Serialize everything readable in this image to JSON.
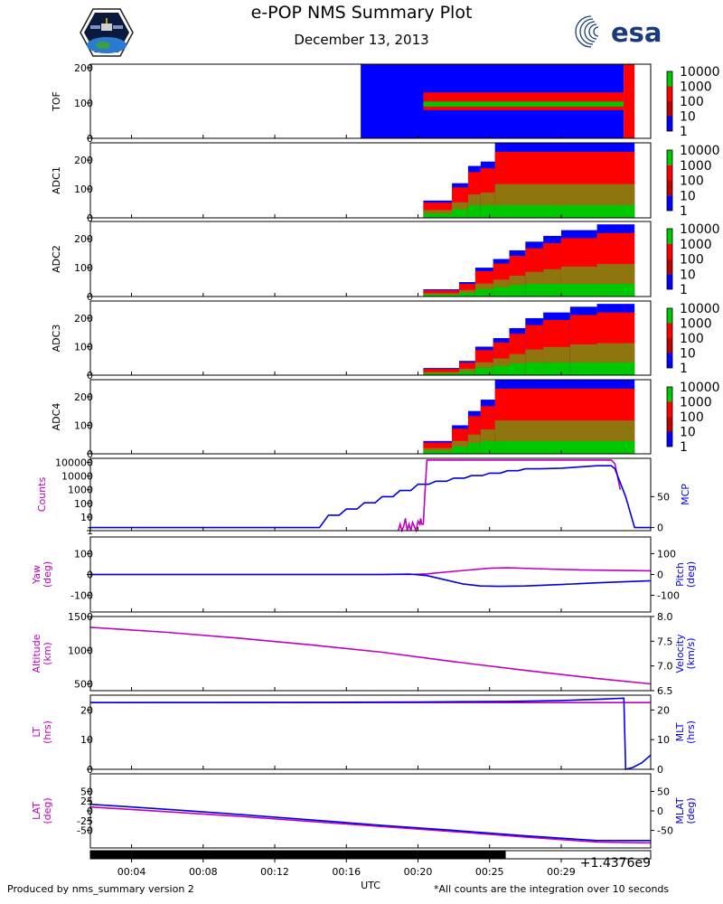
{
  "header": {
    "title": "e-POP NMS Summary Plot",
    "date": "December 13, 2013",
    "logo_left_name": "epop-mission-patch",
    "logo_right_text": "esa"
  },
  "footer": {
    "left": "Produced by nms_summary version 2",
    "right": "*All counts are the integration over 10 seconds"
  },
  "colors": {
    "magenta": "#c000c0",
    "blue": "#0000e0",
    "spec_blue": "#0000ff",
    "spec_red": "#ff0000",
    "spec_green": "#00c800"
  },
  "chart_data": [
    {
      "type": "heatmap",
      "name": "TOF",
      "ylabel": "TOF",
      "ylim": [
        0,
        210
      ],
      "yticks": [
        0,
        100,
        200
      ],
      "colorbar": {
        "ticks": [
          "10000",
          "1000",
          "100",
          "10",
          "1"
        ],
        "scale": "log"
      },
      "regions": [
        {
          "t0": 16.8,
          "t1": 31.5,
          "y0": 0,
          "y1": 210,
          "level": "low"
        },
        {
          "t0": 20.3,
          "t1": 31.5,
          "y0": 80,
          "y1": 130,
          "level": "mid"
        },
        {
          "t0": 20.3,
          "t1": 31.5,
          "y0": 90,
          "y1": 104,
          "level": "high"
        },
        {
          "t0": 31.5,
          "t1": 32.1,
          "y0": 0,
          "y1": 210,
          "level": "mid"
        }
      ]
    },
    {
      "type": "heatmap",
      "name": "ADC1",
      "ylabel": "ADC1",
      "ylim": [
        0,
        260
      ],
      "yticks": [
        0,
        100,
        200
      ],
      "colorbar": {
        "ticks": [
          "10000",
          "1000",
          "100",
          "10",
          "1"
        ],
        "scale": "log"
      },
      "steps": [
        [
          20.3,
          21.9,
          60
        ],
        [
          21.9,
          22.8,
          120
        ],
        [
          22.8,
          23.5,
          180
        ],
        [
          23.5,
          24.3,
          195
        ],
        [
          24.3,
          32.1,
          260
        ]
      ]
    },
    {
      "type": "heatmap",
      "name": "ADC2",
      "ylabel": "ADC2",
      "ylim": [
        0,
        260
      ],
      "yticks": [
        0,
        100,
        200
      ],
      "colorbar": {
        "ticks": [
          "10000",
          "1000",
          "100",
          "10",
          "1"
        ],
        "scale": "log"
      },
      "steps": [
        [
          20.3,
          22.3,
          25
        ],
        [
          22.3,
          23.2,
          50
        ],
        [
          23.2,
          24.2,
          100
        ],
        [
          24.2,
          25.1,
          130
        ],
        [
          25.1,
          26.0,
          160
        ],
        [
          26.0,
          27.0,
          190
        ],
        [
          27.0,
          28.0,
          210
        ],
        [
          28.0,
          30.0,
          230
        ],
        [
          30.0,
          32.1,
          250
        ]
      ]
    },
    {
      "type": "heatmap",
      "name": "ADC3",
      "ylabel": "ADC3",
      "ylim": [
        0,
        260
      ],
      "yticks": [
        0,
        100,
        200
      ],
      "colorbar": {
        "ticks": [
          "10000",
          "1000",
          "100",
          "10",
          "1"
        ],
        "scale": "log"
      },
      "steps": [
        [
          20.3,
          22.3,
          25
        ],
        [
          22.3,
          23.2,
          50
        ],
        [
          23.2,
          24.2,
          100
        ],
        [
          24.2,
          25.1,
          130
        ],
        [
          25.1,
          26.0,
          165
        ],
        [
          26.0,
          27.0,
          200
        ],
        [
          27.0,
          28.5,
          220
        ],
        [
          28.5,
          30.0,
          240
        ],
        [
          30.0,
          32.1,
          250
        ]
      ]
    },
    {
      "type": "heatmap",
      "name": "ADC4",
      "ylabel": "ADC4",
      "ylim": [
        0,
        260
      ],
      "yticks": [
        0,
        100,
        200
      ],
      "colorbar": {
        "ticks": [
          "10000",
          "1000",
          "100",
          "10",
          "1"
        ],
        "scale": "log"
      },
      "steps": [
        [
          20.3,
          21.9,
          45
        ],
        [
          21.9,
          22.8,
          100
        ],
        [
          22.8,
          23.5,
          150
        ],
        [
          23.5,
          24.3,
          190
        ],
        [
          24.3,
          32.1,
          260
        ]
      ]
    },
    {
      "type": "line",
      "name": "counts-mcp",
      "left_label": "Counts",
      "right_label": "MCP",
      "left_scale": "log",
      "left_ylim": [
        1,
        200000
      ],
      "left_ticks": [
        "1",
        "10",
        "100",
        "1000",
        "10000",
        "100000"
      ],
      "right_ylim": [
        -5,
        112
      ],
      "right_ticks": [
        "0",
        "50"
      ],
      "series": [
        {
          "name": "Counts",
          "color": "magenta",
          "axis": "left",
          "x": [
            18.9,
            19.0,
            19.1,
            19.2,
            19.3,
            19.4,
            19.5,
            19.6,
            19.7,
            19.8,
            19.9,
            20.0,
            20.1,
            20.15,
            20.2,
            20.3,
            20.4,
            20.5,
            20.6,
            30.6,
            30.8,
            31.0,
            31.3
          ],
          "y": [
            1,
            3,
            1,
            2,
            8,
            1,
            3,
            1,
            4,
            2,
            1,
            5,
            3,
            8,
            3,
            3,
            1000,
            150000,
            150000,
            150000,
            150000,
            80000,
            1000
          ]
        },
        {
          "name": "MCP",
          "color": "blue",
          "axis": "right",
          "x": [
            1.7,
            14.5,
            15.0,
            15.6,
            16.0,
            16.6,
            17.0,
            17.6,
            18.0,
            18.6,
            19.0,
            19.6,
            20.0,
            20.6,
            21.0,
            21.6,
            22.0,
            22.6,
            23.0,
            23.6,
            24.0,
            24.6,
            25.0,
            25.6,
            26.0,
            26.8,
            28.0,
            29.0,
            30.0,
            30.8,
            31.0,
            31.6,
            32.1,
            33.0
          ],
          "y": [
            0,
            0,
            20,
            20,
            30,
            30,
            40,
            40,
            50,
            50,
            60,
            60,
            70,
            70,
            75,
            75,
            80,
            80,
            84,
            84,
            88,
            88,
            92,
            92,
            95,
            95,
            96,
            98,
            100,
            100,
            95,
            50,
            0,
            0
          ]
        }
      ]
    },
    {
      "type": "line",
      "name": "yaw-pitch",
      "left_label": "Yaw\n(deg)",
      "right_label": "Pitch\n(deg)",
      "left_ylim": [
        -180,
        180
      ],
      "left_ticks": [
        "-100",
        "0",
        "100"
      ],
      "right_ylim": [
        -180,
        180
      ],
      "right_ticks": [
        "-100",
        "0",
        "100"
      ],
      "series": [
        {
          "name": "Yaw",
          "color": "magenta",
          "axis": "left",
          "x": [
            1.7,
            19.5,
            20.5,
            22.0,
            24.0,
            25.0,
            26.5,
            29.0,
            33.0
          ],
          "y": [
            0,
            0,
            3,
            15,
            30,
            32,
            28,
            22,
            18
          ]
        },
        {
          "name": "Pitch",
          "color": "blue",
          "axis": "right",
          "x": [
            1.7,
            18.0,
            19.5,
            20.5,
            21.5,
            22.5,
            23.5,
            24.5,
            26.0,
            28.0,
            30.0,
            33.0
          ],
          "y": [
            0,
            0,
            2,
            -5,
            -25,
            -45,
            -55,
            -57,
            -55,
            -48,
            -40,
            -30
          ]
        }
      ]
    },
    {
      "type": "line",
      "name": "altitude-velocity",
      "left_label": "Altitude\n(km)",
      "right_label": "Velocity\n(km/s)",
      "left_ylim": [
        400,
        1500
      ],
      "left_ticks": [
        "500",
        "1000",
        "1500"
      ],
      "right_ylim": [
        6.5,
        8.0
      ],
      "right_ticks": [
        "6.5",
        "7.0",
        "7.5",
        "8.0"
      ],
      "series": [
        {
          "name": "Altitude",
          "color": "magenta",
          "axis": "left",
          "x": [
            1.7,
            6.0,
            10.0,
            14.0,
            18.0,
            22.0,
            26.0,
            30.0,
            33.0
          ],
          "y": [
            1340,
            1265,
            1180,
            1080,
            970,
            830,
            700,
            580,
            500
          ]
        }
      ]
    },
    {
      "type": "line",
      "name": "lt-mlt",
      "left_label": "LT\n(hrs)",
      "right_label": "MLT\n(hrs)",
      "left_ylim": [
        0,
        25
      ],
      "left_ticks": [
        "0",
        "10",
        "20"
      ],
      "right_ylim": [
        0,
        25
      ],
      "right_ticks": [
        "0",
        "10",
        "20"
      ],
      "series": [
        {
          "name": "LT",
          "color": "magenta",
          "axis": "left",
          "x": [
            1.7,
            33.0
          ],
          "y": [
            22.5,
            22.5
          ]
        },
        {
          "name": "MLT",
          "color": "blue",
          "axis": "right",
          "x": [
            1.7,
            15.0,
            20.0,
            25.0,
            28.0,
            30.0,
            31.5,
            31.6,
            32.0,
            32.5,
            33.0
          ],
          "y": [
            22.5,
            22.6,
            22.7,
            22.9,
            23.2,
            23.6,
            24.0,
            0,
            0.6,
            2.2,
            4.8
          ]
        }
      ]
    },
    {
      "type": "line",
      "name": "lat-mlat",
      "left_label": "LAT\n(deg)",
      "right_label": "MLAT\n(deg)",
      "left_ylim": [
        -95,
        95
      ],
      "left_ticks": [
        "-50",
        "-25",
        "0",
        "25",
        "50"
      ],
      "right_ylim": [
        -95,
        95
      ],
      "right_ticks": [
        "-50",
        "0",
        "50"
      ],
      "series": [
        {
          "name": "LAT",
          "color": "magenta",
          "axis": "left",
          "x": [
            1.7,
            6.0,
            10.0,
            14.0,
            18.0,
            22.0,
            26.0,
            30.0,
            33.0
          ],
          "y": [
            10,
            -2,
            -14,
            -27,
            -40,
            -53,
            -67,
            -80,
            -82
          ]
        },
        {
          "name": "MLAT",
          "color": "blue",
          "axis": "right",
          "x": [
            1.7,
            6.0,
            10.0,
            14.0,
            18.0,
            22.0,
            26.0,
            30.0,
            33.0
          ],
          "y": [
            17,
            4,
            -9,
            -23,
            -37,
            -50,
            -64,
            -76,
            -76
          ]
        }
      ]
    }
  ],
  "x_axis": {
    "label": "UTC",
    "xlim": [
      1.7,
      33.0
    ],
    "ticks": [
      4,
      8,
      12,
      16,
      20,
      24,
      28
    ],
    "tick_labels": [
      "00:04",
      "00:08",
      "00:12",
      "00:16",
      "00:20",
      "00:25",
      "00:29"
    ],
    "offset_label": "+1.4376e9",
    "bar_fill_end": 24.9
  }
}
